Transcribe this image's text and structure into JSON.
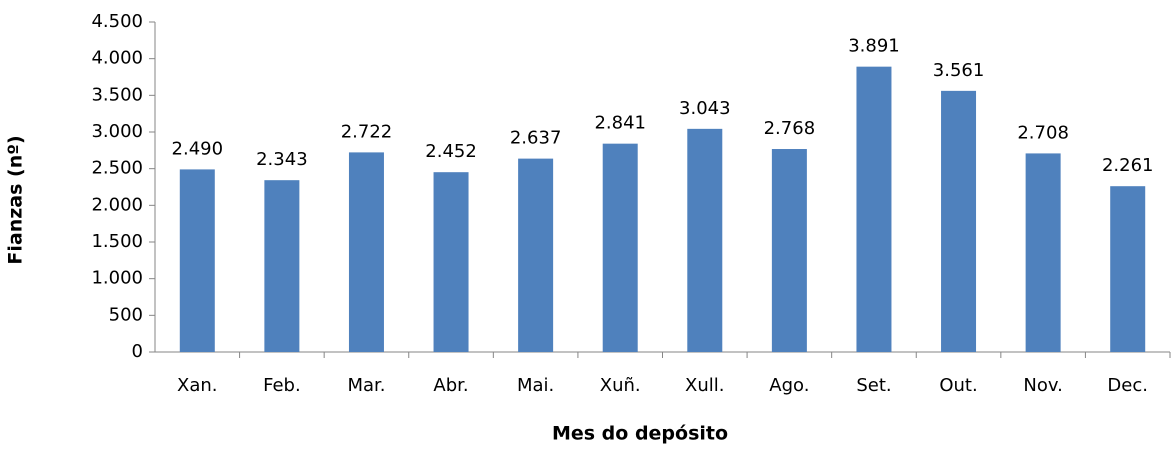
{
  "chart_data": {
    "type": "bar",
    "x_label": "Mes do depósito",
    "y_label": "Fianzas (nº)",
    "categories": [
      "Xan.",
      "Feb.",
      "Mar.",
      "Abr.",
      "Mai.",
      "Xuñ.",
      "Xull.",
      "Ago.",
      "Set.",
      "Out.",
      "Nov.",
      "Dec."
    ],
    "values": [
      2490,
      2343,
      2722,
      2452,
      2637,
      2841,
      3043,
      2768,
      3891,
      3561,
      2708,
      2261
    ],
    "value_labels": [
      "2.490",
      "2.343",
      "2.722",
      "2.452",
      "2.637",
      "2.841",
      "3.043",
      "2.768",
      "3.891",
      "3.561",
      "2.708",
      "2.261"
    ],
    "color": "#4f81bd",
    "ylim": [
      0,
      4500
    ],
    "yticks": [
      0,
      500,
      {
        "value": 1000,
        "label": "1.000"
      },
      {
        "value": 1500,
        "label": "1.500"
      },
      {
        "value": 2000,
        "label": "2.000"
      },
      {
        "value": 2500,
        "label": "2.500"
      },
      {
        "value": 3000,
        "label": "3.000"
      },
      {
        "value": 3500,
        "label": "3.500"
      },
      {
        "value": 4000,
        "label": "4.000"
      },
      {
        "value": 4500,
        "label": "4.500"
      }
    ],
    "grid": false
  }
}
